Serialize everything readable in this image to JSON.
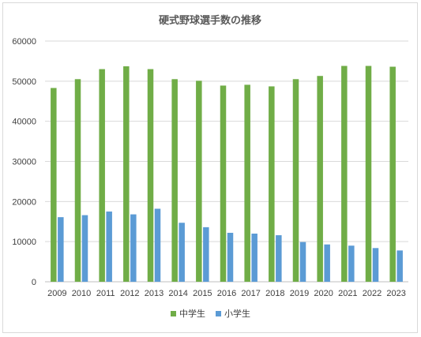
{
  "chart_data": {
    "type": "bar",
    "title": "硬式野球選手数の推移",
    "categories": [
      "2009",
      "2010",
      "2011",
      "2012",
      "2013",
      "2014",
      "2015",
      "2016",
      "2017",
      "2018",
      "2019",
      "2020",
      "2021",
      "2022",
      "2023"
    ],
    "series": [
      {
        "name": "中学生",
        "color": "#70ad47",
        "values": [
          48300,
          50500,
          53000,
          53700,
          53000,
          50500,
          50100,
          48900,
          49100,
          48700,
          50500,
          51300,
          53800,
          53800,
          53600
        ]
      },
      {
        "name": "小学生",
        "color": "#5b9bd5",
        "values": [
          16100,
          16600,
          17500,
          16800,
          18200,
          14700,
          13600,
          12200,
          12000,
          11600,
          9900,
          9300,
          9000,
          8400,
          7800
        ]
      }
    ],
    "ylim": [
      0,
      60000
    ],
    "yticks": [
      "0",
      "10000",
      "20000",
      "30000",
      "40000",
      "50000",
      "60000"
    ],
    "grid": true,
    "legend_position": "bottom"
  }
}
